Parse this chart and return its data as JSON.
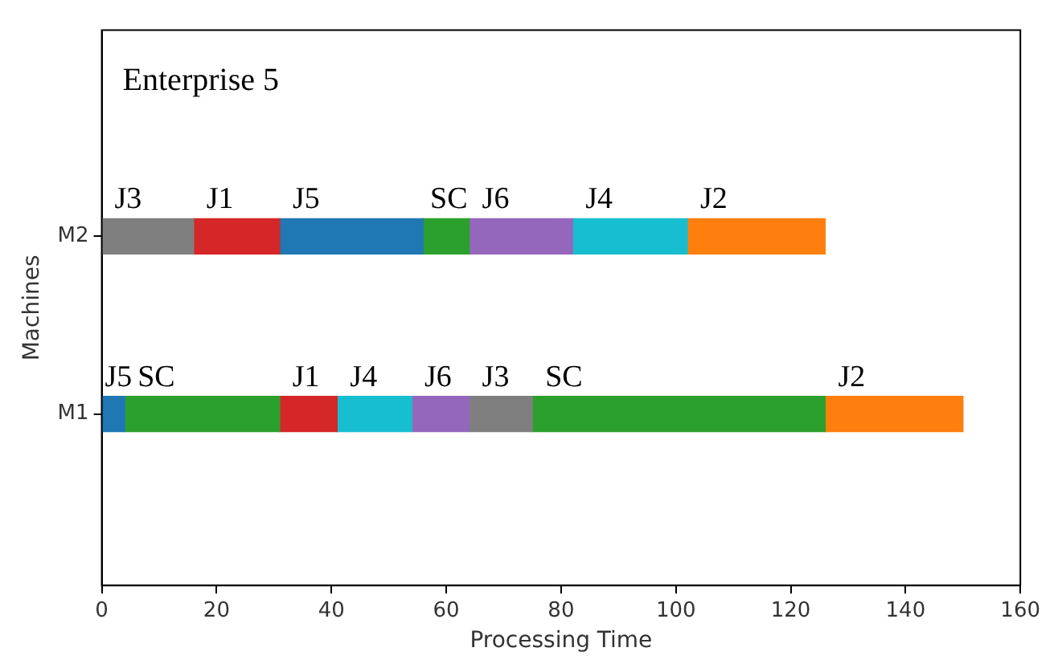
{
  "chart_data": {
    "type": "bar",
    "orientation": "horizontal",
    "stacked": true,
    "title": "Enterprise 5",
    "xlabel": "Processing Time",
    "ylabel": "Machines",
    "categories": [
      "M2",
      "M1"
    ],
    "series": [
      {
        "colors": [
          "#7f7f7f",
          "#1f77b4"
        ],
        "values": [
          16,
          4
        ],
        "value_labels": [
          "J3",
          "J5"
        ]
      },
      {
        "colors": [
          "#d62728",
          "#2ca02c"
        ],
        "values": [
          15,
          27
        ],
        "value_labels": [
          "J1",
          "SC"
        ]
      },
      {
        "colors": [
          "#1f77b4",
          "#d62728"
        ],
        "values": [
          25,
          10
        ],
        "value_labels": [
          "J5",
          "J1"
        ]
      },
      {
        "colors": [
          "#2ca02c",
          "#17becf"
        ],
        "values": [
          8,
          13
        ],
        "value_labels": [
          "SC",
          "J4"
        ]
      },
      {
        "colors": [
          "#9467bd",
          "#9467bd"
        ],
        "values": [
          18,
          10
        ],
        "value_labels": [
          "J6",
          "J6"
        ]
      },
      {
        "colors": [
          "#17becf",
          "#7f7f7f"
        ],
        "values": [
          20,
          11
        ],
        "value_labels": [
          "J4",
          "J3"
        ]
      },
      {
        "colors": [
          "#ff7f0e",
          "#2ca02c"
        ],
        "values": [
          24,
          51
        ],
        "value_labels": [
          "J2",
          "SC"
        ]
      },
      {
        "colors": [
          null,
          "#ff7f0e"
        ],
        "values": [
          null,
          24
        ],
        "value_labels": [
          null,
          "J2"
        ]
      }
    ],
    "xlim": [
      0,
      160
    ],
    "xticks": [
      0,
      20,
      40,
      60,
      80,
      100,
      120,
      140,
      160
    ],
    "grid": false,
    "legend": false
  }
}
